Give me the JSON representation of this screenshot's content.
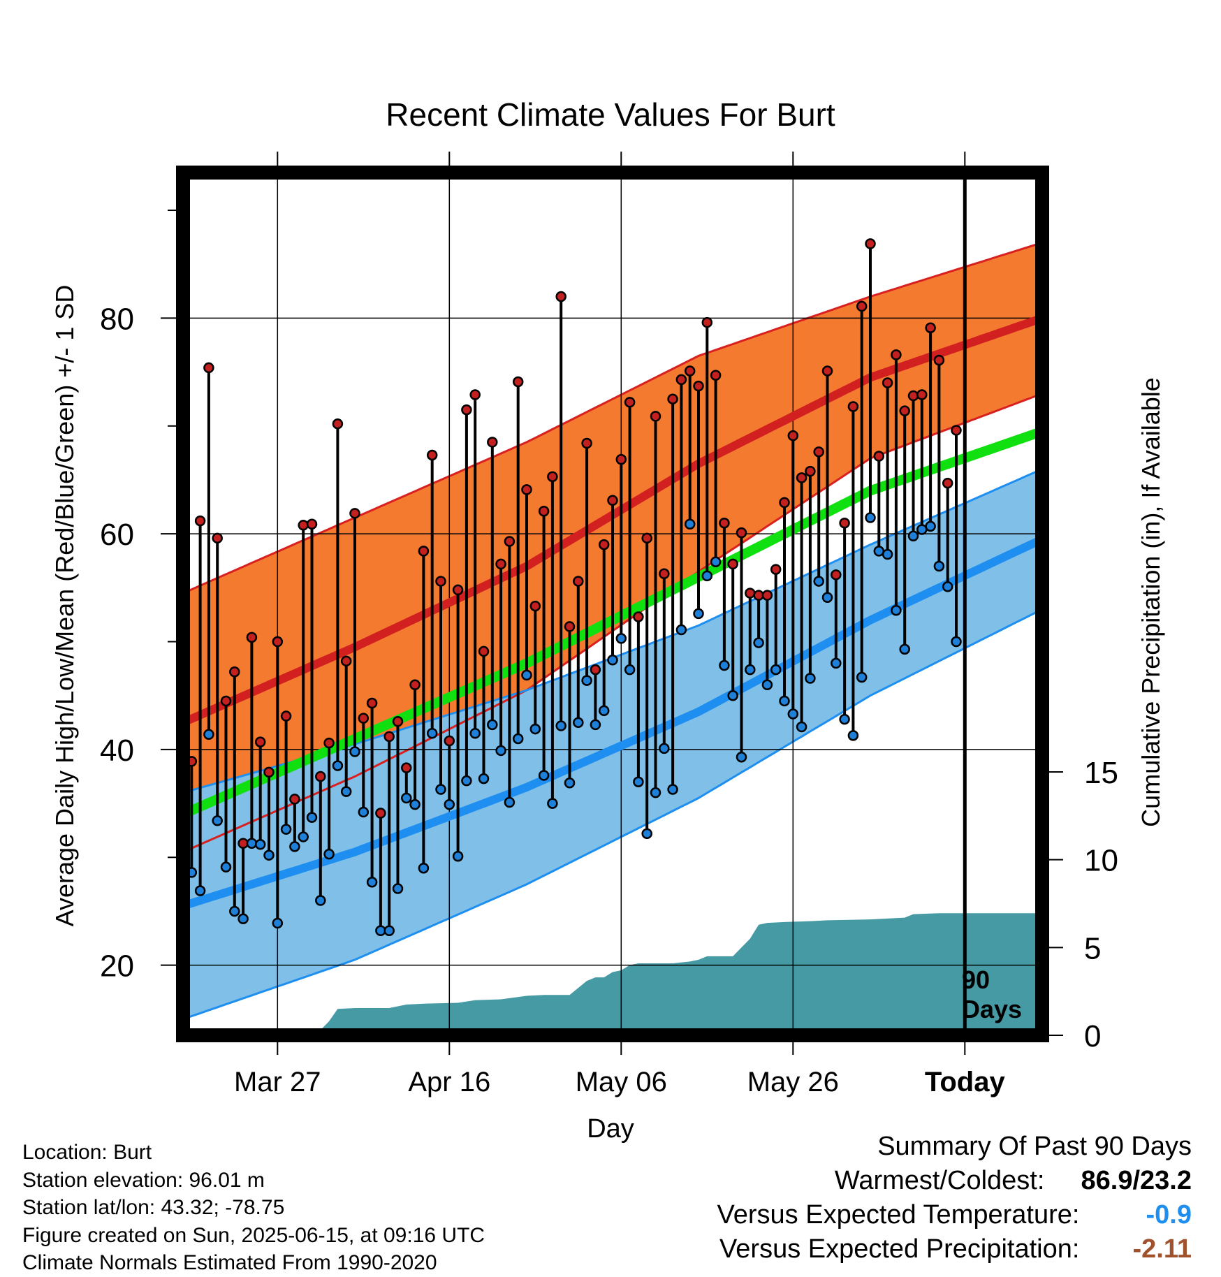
{
  "chart_data": {
    "type": "line",
    "title": "Recent Climate Values For Burt",
    "xlabel": "Day",
    "ylabel_left": "Average Daily High/Low/Mean (Red/Blue/Green) +/- 1 SD",
    "ylabel_right": "Cumulative Precipitation (in), If Available",
    "x_tick_labels": [
      "Mar 27",
      "Apr 16",
      "May 06",
      "May 26",
      "Today"
    ],
    "x_tick_days": [
      11,
      31,
      51,
      71,
      91
    ],
    "xlim_days": [
      0,
      100
    ],
    "ylim_left": [
      13.5,
      93.5
    ],
    "y_ticks_left": [
      20,
      40,
      60,
      80
    ],
    "ylim_right": [
      0,
      15
    ],
    "y_ticks_right": [
      0,
      5,
      10,
      15
    ],
    "today_marker_label_line1": "90",
    "today_marker_label_line2": "Days",
    "grid": true,
    "colors": {
      "high_band": "#f47a30",
      "high_band_edge": "#d92020",
      "normal_high": "#d22020",
      "normal_low": "#1e8ff0",
      "low_band": "#80c0e8",
      "low_band_edge": "#1e8ff0",
      "normal_mean": "#10e010",
      "precip_fill": "#469aa4",
      "high_dot": "#c42020",
      "low_dot": "#1e80d8"
    },
    "normals": {
      "days": [
        0,
        20,
        40,
        60,
        80,
        100
      ],
      "normal_high": [
        42.5,
        49.5,
        57.0,
        66.5,
        74.5,
        80.0
      ],
      "normal_high_sd": [
        12.0,
        12.0,
        11.5,
        10.0,
        7.5,
        7.0
      ],
      "normal_low": [
        25.5,
        30.5,
        36.5,
        43.5,
        52.0,
        59.5
      ],
      "normal_low_sd": [
        10.5,
        10.0,
        9.0,
        8.0,
        7.0,
        6.5
      ],
      "normal_mean": [
        34.0,
        41.0,
        48.0,
        56.0,
        64.0,
        69.5
      ]
    },
    "daily": {
      "start_day": 1,
      "high": [
        38.9,
        61.2,
        75.4,
        59.6,
        44.5,
        47.2,
        31.3,
        50.4,
        40.7,
        37.9,
        50.0,
        43.1,
        35.4,
        60.8,
        60.9,
        37.5,
        40.6,
        70.2,
        48.2,
        61.9,
        42.9,
        44.3,
        34.1,
        41.2,
        42.6,
        38.3,
        46.0,
        58.4,
        67.3,
        55.6,
        40.8,
        54.8,
        71.5,
        72.9,
        49.1,
        68.5,
        57.2,
        59.3,
        74.1,
        64.1,
        53.3,
        62.1,
        65.3,
        82.0,
        51.4,
        55.6,
        68.4,
        47.4,
        59.0,
        63.1,
        66.9,
        72.2,
        52.3,
        59.6,
        70.9,
        56.3,
        72.5,
        74.3,
        75.1,
        73.7,
        79.6,
        74.7,
        61.0,
        57.2,
        60.1,
        54.5,
        54.3,
        54.3,
        56.7,
        62.9,
        69.1,
        65.2,
        65.8,
        67.6,
        75.1,
        56.2,
        61.0,
        71.8,
        81.1,
        86.9,
        67.2,
        74.0,
        76.6,
        71.4,
        72.8,
        72.9,
        79.1,
        76.1,
        64.7,
        69.6
      ],
      "low": [
        28.6,
        26.9,
        41.4,
        33.4,
        29.1,
        25.0,
        24.3,
        31.3,
        31.2,
        30.2,
        23.9,
        32.6,
        31.0,
        31.9,
        33.7,
        26.0,
        30.3,
        38.5,
        36.1,
        39.8,
        34.2,
        27.7,
        23.2,
        23.2,
        27.1,
        35.5,
        34.9,
        29.0,
        41.5,
        36.3,
        34.9,
        30.1,
        37.1,
        41.5,
        37.3,
        42.3,
        39.9,
        35.1,
        41.0,
        46.9,
        41.9,
        37.6,
        35.0,
        42.2,
        36.9,
        42.5,
        46.4,
        42.3,
        43.6,
        48.3,
        50.3,
        47.4,
        37.0,
        32.2,
        36.0,
        40.1,
        36.3,
        51.1,
        60.9,
        52.6,
        56.1,
        57.4,
        47.8,
        45.0,
        39.3,
        47.4,
        49.9,
        46.0,
        47.4,
        44.5,
        43.3,
        42.1,
        46.6,
        55.6,
        54.1,
        48.0,
        42.8,
        41.3,
        46.7,
        61.5,
        58.4,
        58.1,
        52.9,
        49.3,
        59.8,
        60.4,
        60.7,
        57.0,
        55.1,
        50.0
      ]
    },
    "cumulative_precip": {
      "days": [
        0,
        11,
        12,
        13,
        14,
        15,
        16,
        17,
        18,
        20,
        24,
        26,
        28,
        32,
        34,
        37,
        40,
        42,
        45,
        47,
        48,
        49,
        50,
        51,
        52,
        53,
        57,
        59,
        60,
        61,
        62,
        64,
        66,
        67,
        68,
        70,
        73,
        75,
        80,
        84,
        85,
        88,
        90,
        100
      ],
      "values": [
        0,
        0,
        0.1,
        0.2,
        0.25,
        0.3,
        0.3,
        0.8,
        1.5,
        1.55,
        1.55,
        1.75,
        1.8,
        1.85,
        2.0,
        2.05,
        2.25,
        2.3,
        2.3,
        3.1,
        3.3,
        3.3,
        3.6,
        3.7,
        4.0,
        4.1,
        4.1,
        4.2,
        4.3,
        4.5,
        4.5,
        4.5,
        5.5,
        6.3,
        6.4,
        6.45,
        6.5,
        6.55,
        6.6,
        6.7,
        6.9,
        6.95,
        6.95,
        6.95
      ]
    }
  },
  "footer": {
    "location": "Location: Burt",
    "elevation": "Station elevation: 96.01 m",
    "latlon": "Station lat/lon: 43.32; -78.75",
    "created": "Figure created on Sun, 2025-06-15, at 09:16 UTC",
    "normals": "Climate Normals Estimated From 1990-2020"
  },
  "summary": {
    "heading": "Summary Of Past 90 Days",
    "warm_cold_label": "Warmest/Coldest:",
    "warm_cold_value": "86.9/23.2",
    "temp_label": "Versus Expected Temperature:",
    "temp_value": "-0.9",
    "temp_color": "#1e8ff0",
    "precip_label": "Versus Expected Precipitation:",
    "precip_value": "-2.11",
    "precip_color": "#a0522d"
  }
}
